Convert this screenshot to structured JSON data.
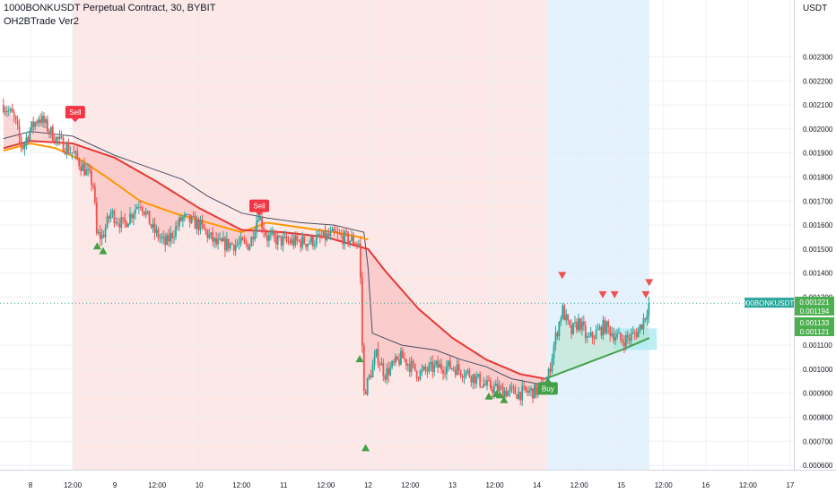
{
  "header": {
    "title": "1000BONKUSDT Perpetual Contract, 30, BYBIT",
    "indicator": "OH2BTrade Ver2"
  },
  "chart_data": {
    "type": "candlestick",
    "symbol": "1000BONKUSDT.P",
    "price_unit": "USDT",
    "ylim": [
      0.00055,
      0.0024
    ],
    "y_ticks": [
      "0.002300",
      "0.002200",
      "0.002100",
      "0.002000",
      "0.001900",
      "0.001800",
      "0.001700",
      "0.001600",
      "0.001500",
      "0.001400",
      "0.001300",
      "0.001100",
      "0.001000",
      "0.000900",
      "0.000800",
      "0.000700",
      "0.000600"
    ],
    "y_tick_values": [
      0.0023,
      0.0022,
      0.0021,
      0.002,
      0.0019,
      0.0018,
      0.0017,
      0.0016,
      0.0015,
      0.0014,
      0.0013,
      0.0011,
      0.001,
      0.0009,
      0.0008,
      0.0007,
      0.0006
    ],
    "x_ticks": [
      "8",
      "12:00",
      "9",
      "12:00",
      "10",
      "12:00",
      "11",
      "12:00",
      "12",
      "12:00",
      "13",
      "12:00",
      "14",
      "12:00",
      "15",
      "12:00",
      "16",
      "12:00",
      "17"
    ],
    "x_tick_days": [
      8,
      8.5,
      9,
      9.5,
      10,
      10.5,
      11,
      11.5,
      12,
      12.5,
      13,
      13.5,
      14,
      14.5,
      15,
      15.5,
      16,
      16.5,
      17
    ],
    "last_price": {
      "symbol": "1000BONKUSDT.P",
      "label": "0.001275",
      "value": 0.001275
    },
    "price_labels": [
      {
        "label": "0.001221",
        "value": 0.001221
      },
      {
        "label": "0.001194",
        "value": 0.001194
      },
      {
        "label": "0.001133",
        "value": 0.001133
      },
      {
        "label": "0.001121",
        "value": 0.001121
      }
    ],
    "regions": [
      {
        "kind": "bearish",
        "from_day": 8.5,
        "to_day": 14.12,
        "color": "#fde8e8"
      },
      {
        "kind": "bullish",
        "from_day": 14.12,
        "to_day": 15.33,
        "color": "#e3f2fd"
      }
    ],
    "zone_box": {
      "from_day": 14.9,
      "to_day": 15.42,
      "top": 0.00117,
      "bottom": 0.00108,
      "color": "#b2ebf2"
    },
    "signals": [
      {
        "type": "Sell",
        "day": 8.53,
        "price": 0.00207
      },
      {
        "type": "Sell",
        "day": 10.71,
        "price": 0.00168
      },
      {
        "type": "Buy",
        "day": 14.13,
        "price": 0.00092
      }
    ],
    "up_arrows": [
      {
        "day": 8.79,
        "price": 0.00151
      },
      {
        "day": 8.86,
        "price": 0.00149
      },
      {
        "day": 11.9,
        "price": 0.00104
      },
      {
        "day": 11.97,
        "price": 0.00067
      },
      {
        "day": 13.43,
        "price": 0.000885
      },
      {
        "day": 13.52,
        "price": 0.000895
      },
      {
        "day": 13.56,
        "price": 0.00089
      },
      {
        "day": 13.61,
        "price": 0.00087
      }
    ],
    "down_arrows": [
      {
        "day": 14.3,
        "price": 0.00139
      },
      {
        "day": 14.78,
        "price": 0.00131
      },
      {
        "day": 14.92,
        "price": 0.00131
      },
      {
        "day": 15.29,
        "price": 0.00131
      },
      {
        "day": 15.33,
        "price": 0.00136
      }
    ],
    "red_line": [
      [
        7.68,
        0.00192
      ],
      [
        8.0,
        0.00195
      ],
      [
        8.5,
        0.00194
      ],
      [
        9.0,
        0.00188
      ],
      [
        9.5,
        0.00178
      ],
      [
        10.0,
        0.00167
      ],
      [
        10.5,
        0.00158
      ],
      [
        11.0,
        0.00157
      ],
      [
        11.5,
        0.00155
      ],
      [
        12.0,
        0.0015
      ],
      [
        12.2,
        0.00141
      ],
      [
        12.6,
        0.00125
      ],
      [
        13.0,
        0.00113
      ],
      [
        13.4,
        0.00104
      ],
      [
        13.8,
        0.00098
      ],
      [
        14.1,
        0.00096
      ]
    ],
    "green_line": [
      [
        14.1,
        0.00096
      ],
      [
        14.4,
        0.001
      ],
      [
        14.7,
        0.00104
      ],
      [
        15.0,
        0.00108
      ],
      [
        15.2,
        0.00111
      ],
      [
        15.33,
        0.00113
      ]
    ],
    "orange_line": [
      [
        7.68,
        0.00191
      ],
      [
        8.0,
        0.00194
      ],
      [
        8.3,
        0.00192
      ],
      [
        8.6,
        0.00187
      ],
      [
        8.9,
        0.0018
      ],
      [
        9.3,
        0.0017
      ],
      [
        9.7,
        0.00165
      ],
      [
        10.1,
        0.00161
      ],
      [
        10.5,
        0.00157
      ],
      [
        10.8,
        0.00161
      ],
      [
        11.2,
        0.00159
      ],
      [
        11.6,
        0.00157
      ],
      [
        11.9,
        0.00155
      ],
      [
        12.0,
        0.00154
      ]
    ],
    "gray_line": [
      [
        7.68,
        0.00196
      ],
      [
        8.0,
        0.00199
      ],
      [
        8.5,
        0.00197
      ],
      [
        9.0,
        0.00189
      ],
      [
        9.4,
        0.00184
      ],
      [
        9.8,
        0.00179
      ],
      [
        10.1,
        0.00172
      ],
      [
        10.5,
        0.00165
      ],
      [
        10.8,
        0.00163
      ],
      [
        11.2,
        0.00161
      ],
      [
        11.6,
        0.0016
      ],
      [
        11.95,
        0.00157
      ],
      [
        12.0,
        0.00142
      ],
      [
        12.05,
        0.00115
      ],
      [
        12.4,
        0.0011
      ],
      [
        12.8,
        0.00108
      ],
      [
        13.1,
        0.00104
      ],
      [
        13.4,
        0.00101
      ],
      [
        13.7,
        0.00096
      ],
      [
        14.0,
        0.00094
      ],
      [
        14.12,
        0.00094
      ]
    ],
    "candles": {
      "from_day": 7.68,
      "to_day": 15.33,
      "anchors": [
        [
          7.68,
          0.0021
        ],
        [
          7.8,
          0.00205
        ],
        [
          7.9,
          0.00192
        ],
        [
          8.0,
          0.002
        ],
        [
          8.1,
          0.00205
        ],
        [
          8.3,
          0.00196
        ],
        [
          8.5,
          0.0019
        ],
        [
          8.7,
          0.0018
        ],
        [
          8.75,
          0.00176
        ],
        [
          8.78,
          0.00156
        ],
        [
          8.85,
          0.00155
        ],
        [
          8.95,
          0.00165
        ],
        [
          9.1,
          0.0016
        ],
        [
          9.3,
          0.0017
        ],
        [
          9.45,
          0.00158
        ],
        [
          9.6,
          0.00152
        ],
        [
          9.8,
          0.00163
        ],
        [
          10.0,
          0.0016
        ],
        [
          10.2,
          0.00152
        ],
        [
          10.4,
          0.00152
        ],
        [
          10.6,
          0.00152
        ],
        [
          10.7,
          0.00165
        ],
        [
          10.8,
          0.00155
        ],
        [
          11.0,
          0.00153
        ],
        [
          11.3,
          0.00153
        ],
        [
          11.6,
          0.00156
        ],
        [
          11.85,
          0.00153
        ],
        [
          11.9,
          0.00152
        ],
        [
          11.92,
          0.0012
        ],
        [
          11.95,
          0.0009
        ],
        [
          12.0,
          0.00095
        ],
        [
          12.1,
          0.00106
        ],
        [
          12.2,
          0.00098
        ],
        [
          12.4,
          0.00105
        ],
        [
          12.6,
          0.00098
        ],
        [
          12.8,
          0.00101
        ],
        [
          13.0,
          0.00101
        ],
        [
          13.2,
          0.00098
        ],
        [
          13.4,
          0.00093
        ],
        [
          13.6,
          0.00091
        ],
        [
          13.8,
          0.0009
        ],
        [
          14.0,
          0.00091
        ],
        [
          14.12,
          0.00094
        ],
        [
          14.2,
          0.0011
        ],
        [
          14.3,
          0.00125
        ],
        [
          14.4,
          0.00115
        ],
        [
          14.5,
          0.0012
        ],
        [
          14.6,
          0.00112
        ],
        [
          14.8,
          0.00118
        ],
        [
          15.0,
          0.00112
        ],
        [
          15.1,
          0.00113
        ],
        [
          15.2,
          0.00116
        ],
        [
          15.28,
          0.00122
        ],
        [
          15.33,
          0.001275
        ]
      ]
    }
  }
}
